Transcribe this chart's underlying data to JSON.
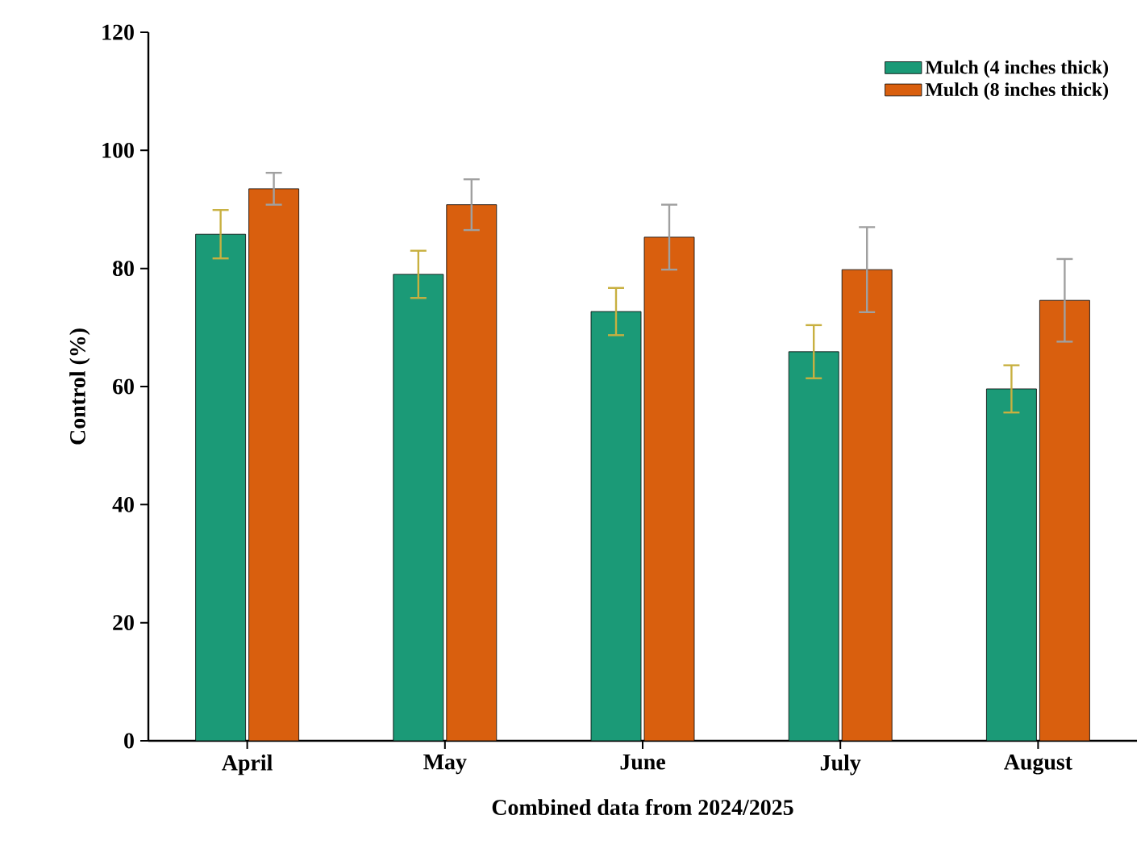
{
  "chart_data": {
    "type": "bar",
    "xlabel": "Combined data from 2024/2025",
    "ylabel": "Control (%)",
    "categories": [
      "April",
      "May",
      "June",
      "July",
      "August"
    ],
    "series": [
      {
        "name": "Mulch (4 inches thick)",
        "color": "#1b9a77",
        "values": [
          85.8,
          79.0,
          72.7,
          65.9,
          59.6
        ],
        "errors": [
          4.1,
          4.0,
          4.0,
          4.5,
          4.0
        ]
      },
      {
        "name": "Mulch (8 inches thick)",
        "color": "#d95f0e",
        "values": [
          93.5,
          90.8,
          85.3,
          79.8,
          74.6
        ],
        "errors": [
          2.7,
          4.3,
          5.5,
          7.2,
          7.0
        ]
      }
    ],
    "ylim": [
      0,
      120
    ],
    "yticks": [
      0,
      20,
      40,
      60,
      80,
      100,
      120
    ],
    "legend": "top right",
    "grid": false
  }
}
